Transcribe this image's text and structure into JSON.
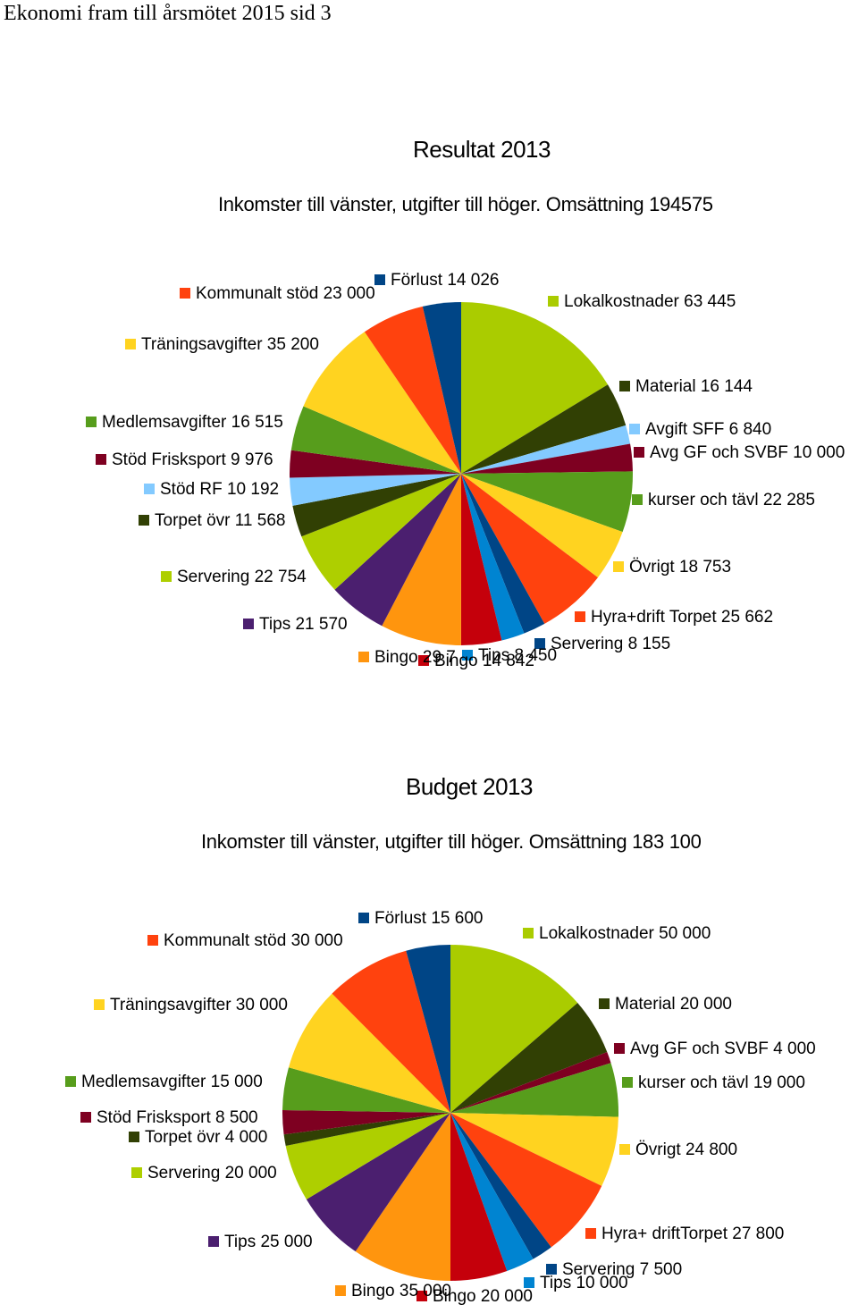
{
  "document": {
    "header": "Ekonomi fram till årsmötet 2015 sid 3"
  },
  "chart_data": [
    {
      "type": "pie",
      "title": "Resultat 2013",
      "subtitle": "Inkomster till vänster, utgifter till höger. Omsättning 194575",
      "slices": [
        {
          "label": "Lokalkostnader 63 445",
          "value": 63445,
          "color": "#aacc00"
        },
        {
          "label": "Material 16 144",
          "value": 16144,
          "color": "#314004"
        },
        {
          "label": "Avgift SFF 6 840",
          "value": 6840,
          "color": "#83caff"
        },
        {
          "label": "Avg GF och SVBF 10 000",
          "value": 10000,
          "color": "#7e0021"
        },
        {
          "label": "kurser och tävl 22 285",
          "value": 22285,
          "color": "#579d1c"
        },
        {
          "label": "Övrigt 18 753",
          "value": 18753,
          "color": "#ffd320"
        },
        {
          "label": "Hyra+drift Torpet 25 662",
          "value": 25662,
          "color": "#ff420e"
        },
        {
          "label": "Servering 8 155",
          "value": 8155,
          "color": "#004586"
        },
        {
          "label": "Tips 8 450",
          "value": 8450,
          "color": "#0084d1"
        },
        {
          "label": "Bingo 14 842",
          "value": 14842,
          "color": "#c5000b"
        },
        {
          "label": "Bingo 29 7",
          "value": 29700,
          "color": "#ff950e"
        },
        {
          "label": "Tips 21 570",
          "value": 21570,
          "color": "#4b1f6f"
        },
        {
          "label": "Servering 22 754",
          "value": 22754,
          "color": "#aecf00"
        },
        {
          "label": "Torpet övr 11 568",
          "value": 11568,
          "color": "#314004"
        },
        {
          "label": "Stöd RF 10 192",
          "value": 10192,
          "color": "#83caff"
        },
        {
          "label": "Stöd Frisksport 9 976",
          "value": 9976,
          "color": "#7e0021"
        },
        {
          "label": "Medlemsavgifter 16 515",
          "value": 16515,
          "color": "#579d1c"
        },
        {
          "label": "Träningsavgifter 35 200",
          "value": 35200,
          "color": "#ffd320"
        },
        {
          "label": "Kommunalt stöd 23 000",
          "value": 23000,
          "color": "#ff420e"
        },
        {
          "label": "Förlust 14 026",
          "value": 14026,
          "color": "#004586"
        }
      ]
    },
    {
      "type": "pie",
      "title": "Budget 2013",
      "subtitle": "Inkomster till vänster, utgifter till höger. Omsättning 183 100",
      "slices": [
        {
          "label": "Lokalkostnader 50 000",
          "value": 50000,
          "color": "#aacc00"
        },
        {
          "label": "Material 20 000",
          "value": 20000,
          "color": "#314004"
        },
        {
          "label": "Avg GF och SVBF 4 000",
          "value": 4000,
          "color": "#7e0021"
        },
        {
          "label": "kurser och tävl 19 000",
          "value": 19000,
          "color": "#579d1c"
        },
        {
          "label": "Övrigt 24 800",
          "value": 24800,
          "color": "#ffd320"
        },
        {
          "label": "Hyra+ driftTorpet 27 800",
          "value": 27800,
          "color": "#ff420e"
        },
        {
          "label": "Servering 7 500",
          "value": 7500,
          "color": "#004586"
        },
        {
          "label": "Tips 10 000",
          "value": 10000,
          "color": "#0084d1"
        },
        {
          "label": "Bingo 20 000",
          "value": 20000,
          "color": "#c5000b"
        },
        {
          "label": "Bingo 35 000",
          "value": 35000,
          "color": "#ff950e"
        },
        {
          "label": "Tips 25 000",
          "value": 25000,
          "color": "#4b1f6f"
        },
        {
          "label": "Servering 20 000",
          "value": 20000,
          "color": "#aecf00"
        },
        {
          "label": "Torpet övr 4 000",
          "value": 4000,
          "color": "#314004"
        },
        {
          "label": "Stöd Frisksport 8 500",
          "value": 8500,
          "color": "#7e0021"
        },
        {
          "label": "Medlemsavgifter 15 000",
          "value": 15000,
          "color": "#579d1c"
        },
        {
          "label": "Träningsavgifter 30 000",
          "value": 30000,
          "color": "#ffd320"
        },
        {
          "label": "Kommunalt stöd 30 000",
          "value": 30000,
          "color": "#ff420e"
        },
        {
          "label": "Förlust 15 600",
          "value": 15600,
          "color": "#004586"
        }
      ]
    }
  ]
}
